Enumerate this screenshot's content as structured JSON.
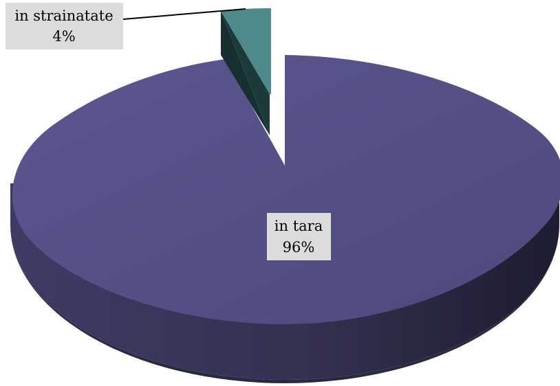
{
  "chart_data": {
    "type": "pie",
    "style": "3d-exploded",
    "legend": "none",
    "slices": [
      {
        "label": "in tara",
        "value": 96,
        "percent_label": "96%",
        "color": "#545184"
      },
      {
        "label": "in strainatate",
        "value": 4,
        "percent_label": "4%",
        "color": "#4e8a8a"
      }
    ],
    "label_background": "#dcdcdc"
  }
}
